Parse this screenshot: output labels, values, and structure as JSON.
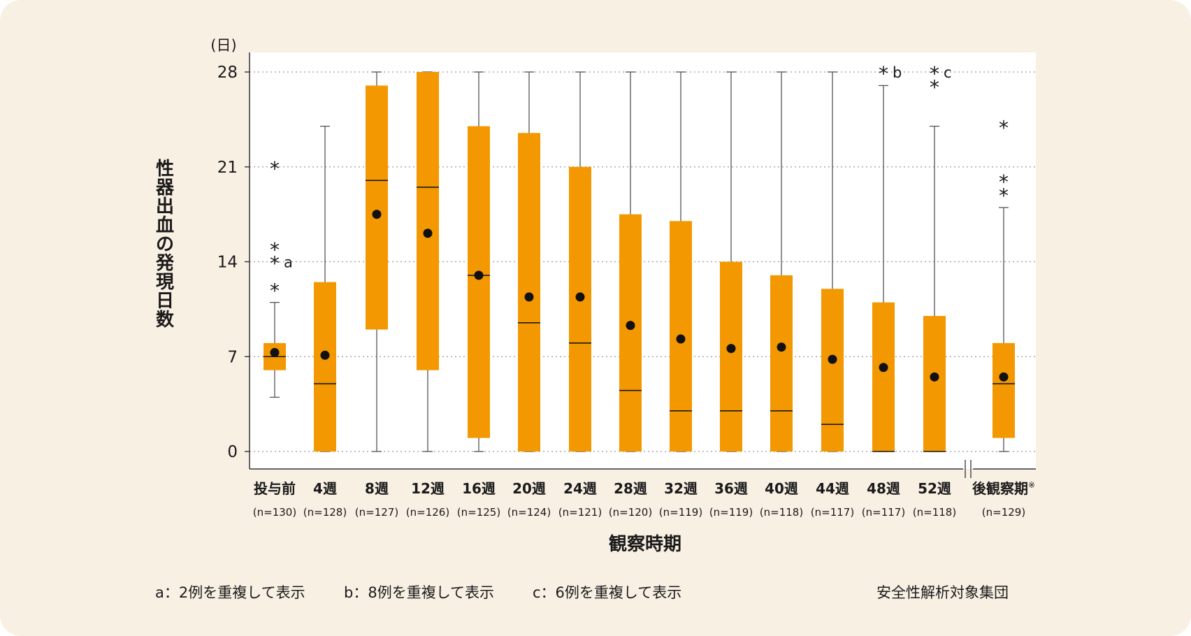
{
  "chart_data": {
    "type": "box",
    "y_unit": "(日)",
    "ylabel": "性器出血の発現日数",
    "xlabel": "観察時期",
    "ylim": [
      0,
      28
    ],
    "yticks": [
      0,
      7,
      14,
      21,
      28
    ],
    "grid": true,
    "categories": [
      {
        "label": "投与前",
        "n": "(n=130)",
        "min": 4,
        "q1": 6,
        "median": 7,
        "q3": 8,
        "max": 11,
        "mean": 7.3,
        "outliers": [
          12,
          14,
          15,
          21
        ],
        "notes": [
          {
            "text": "a",
            "y": 14
          }
        ]
      },
      {
        "label": "4週",
        "n": "(n=128)",
        "min": 0,
        "q1": 0,
        "median": 5,
        "q3": 12.5,
        "max": 24,
        "mean": 7.1,
        "outliers": [],
        "notes": []
      },
      {
        "label": "8週",
        "n": "(n=127)",
        "min": 0,
        "q1": 9,
        "median": 20,
        "q3": 27,
        "max": 28,
        "mean": 17.5,
        "outliers": [],
        "notes": []
      },
      {
        "label": "12週",
        "n": "(n=126)",
        "min": 0,
        "q1": 6,
        "median": 19.5,
        "q3": 28,
        "max": 28,
        "mean": 16.1,
        "outliers": [],
        "notes": []
      },
      {
        "label": "16週",
        "n": "(n=125)",
        "min": 0,
        "q1": 1,
        "median": 13,
        "q3": 24,
        "max": 28,
        "mean": 13,
        "outliers": [],
        "notes": []
      },
      {
        "label": "20週",
        "n": "(n=124)",
        "min": 0,
        "q1": 0,
        "median": 9.5,
        "q3": 23.5,
        "max": 28,
        "mean": 11.4,
        "outliers": [],
        "notes": []
      },
      {
        "label": "24週",
        "n": "(n=121)",
        "min": 0,
        "q1": 0,
        "median": 8,
        "q3": 21,
        "max": 28,
        "mean": 11.4,
        "outliers": [],
        "notes": []
      },
      {
        "label": "28週",
        "n": "(n=120)",
        "min": 0,
        "q1": 0,
        "median": 4.5,
        "q3": 17.5,
        "max": 28,
        "mean": 9.3,
        "outliers": [],
        "notes": []
      },
      {
        "label": "32週",
        "n": "(n=119)",
        "min": 0,
        "q1": 0,
        "median": 3,
        "q3": 17,
        "max": 28,
        "mean": 8.3,
        "outliers": [],
        "notes": []
      },
      {
        "label": "36週",
        "n": "(n=119)",
        "min": 0,
        "q1": 0,
        "median": 3,
        "q3": 14,
        "max": 28,
        "mean": 7.6,
        "outliers": [],
        "notes": []
      },
      {
        "label": "40週",
        "n": "(n=118)",
        "min": 0,
        "q1": 0,
        "median": 3,
        "q3": 13,
        "max": 28,
        "mean": 7.7,
        "outliers": [],
        "notes": []
      },
      {
        "label": "44週",
        "n": "(n=117)",
        "min": 0,
        "q1": 0,
        "median": 2,
        "q3": 12,
        "max": 28,
        "mean": 6.8,
        "outliers": [],
        "notes": []
      },
      {
        "label": "48週",
        "n": "(n=117)",
        "min": 0,
        "q1": 0,
        "median": 0,
        "q3": 11,
        "max": 27,
        "mean": 6.2,
        "outliers": [
          28
        ],
        "notes": [
          {
            "text": "b",
            "y": 28
          }
        ]
      },
      {
        "label": "52週",
        "n": "(n=118)",
        "min": 0,
        "q1": 0,
        "median": 0,
        "q3": 10,
        "max": 24,
        "mean": 5.5,
        "outliers": [
          27,
          28
        ],
        "notes": [
          {
            "text": "c",
            "y": 28
          }
        ]
      },
      {
        "label": "後観察期",
        "label_suffix": "※",
        "n": "(n=129)",
        "min": 0,
        "q1": 1,
        "median": 5,
        "q3": 8,
        "max": 18,
        "mean": 5.5,
        "outliers": [
          19,
          20,
          24
        ],
        "notes": []
      }
    ]
  },
  "footnotes": {
    "a": "a：2例を重複して表示",
    "b": "b：8例を重複して表示",
    "c": "c：6例を重複して表示"
  },
  "population": "安全性解析対象集団",
  "colors": {
    "box": "#f39800",
    "background": "#f9f0e4",
    "plot": "#ffffff",
    "ink": "#1a1a1a"
  }
}
